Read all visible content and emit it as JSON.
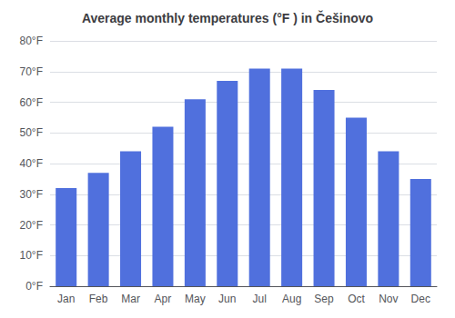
{
  "chart_data": {
    "type": "bar",
    "title": "Average monthly temperatures (°F ) in Češinovo",
    "categories": [
      "Jan",
      "Feb",
      "Mar",
      "Apr",
      "May",
      "Jun",
      "Jul",
      "Aug",
      "Sep",
      "Oct",
      "Nov",
      "Dec"
    ],
    "values": [
      32,
      37,
      44,
      52,
      61,
      67,
      71,
      71,
      64,
      55,
      44,
      35
    ],
    "ylim": [
      0,
      80
    ],
    "yticks": [
      {
        "value": 0,
        "label": "0°F"
      },
      {
        "value": 10,
        "label": "10°F"
      },
      {
        "value": 20,
        "label": "20°F"
      },
      {
        "value": 30,
        "label": "30°F"
      },
      {
        "value": 40,
        "label": "40°F"
      },
      {
        "value": 50,
        "label": "50°F"
      },
      {
        "value": 60,
        "label": "60°F"
      },
      {
        "value": 70,
        "label": "70°F"
      },
      {
        "value": 80,
        "label": "80°F"
      }
    ],
    "grid": true
  }
}
